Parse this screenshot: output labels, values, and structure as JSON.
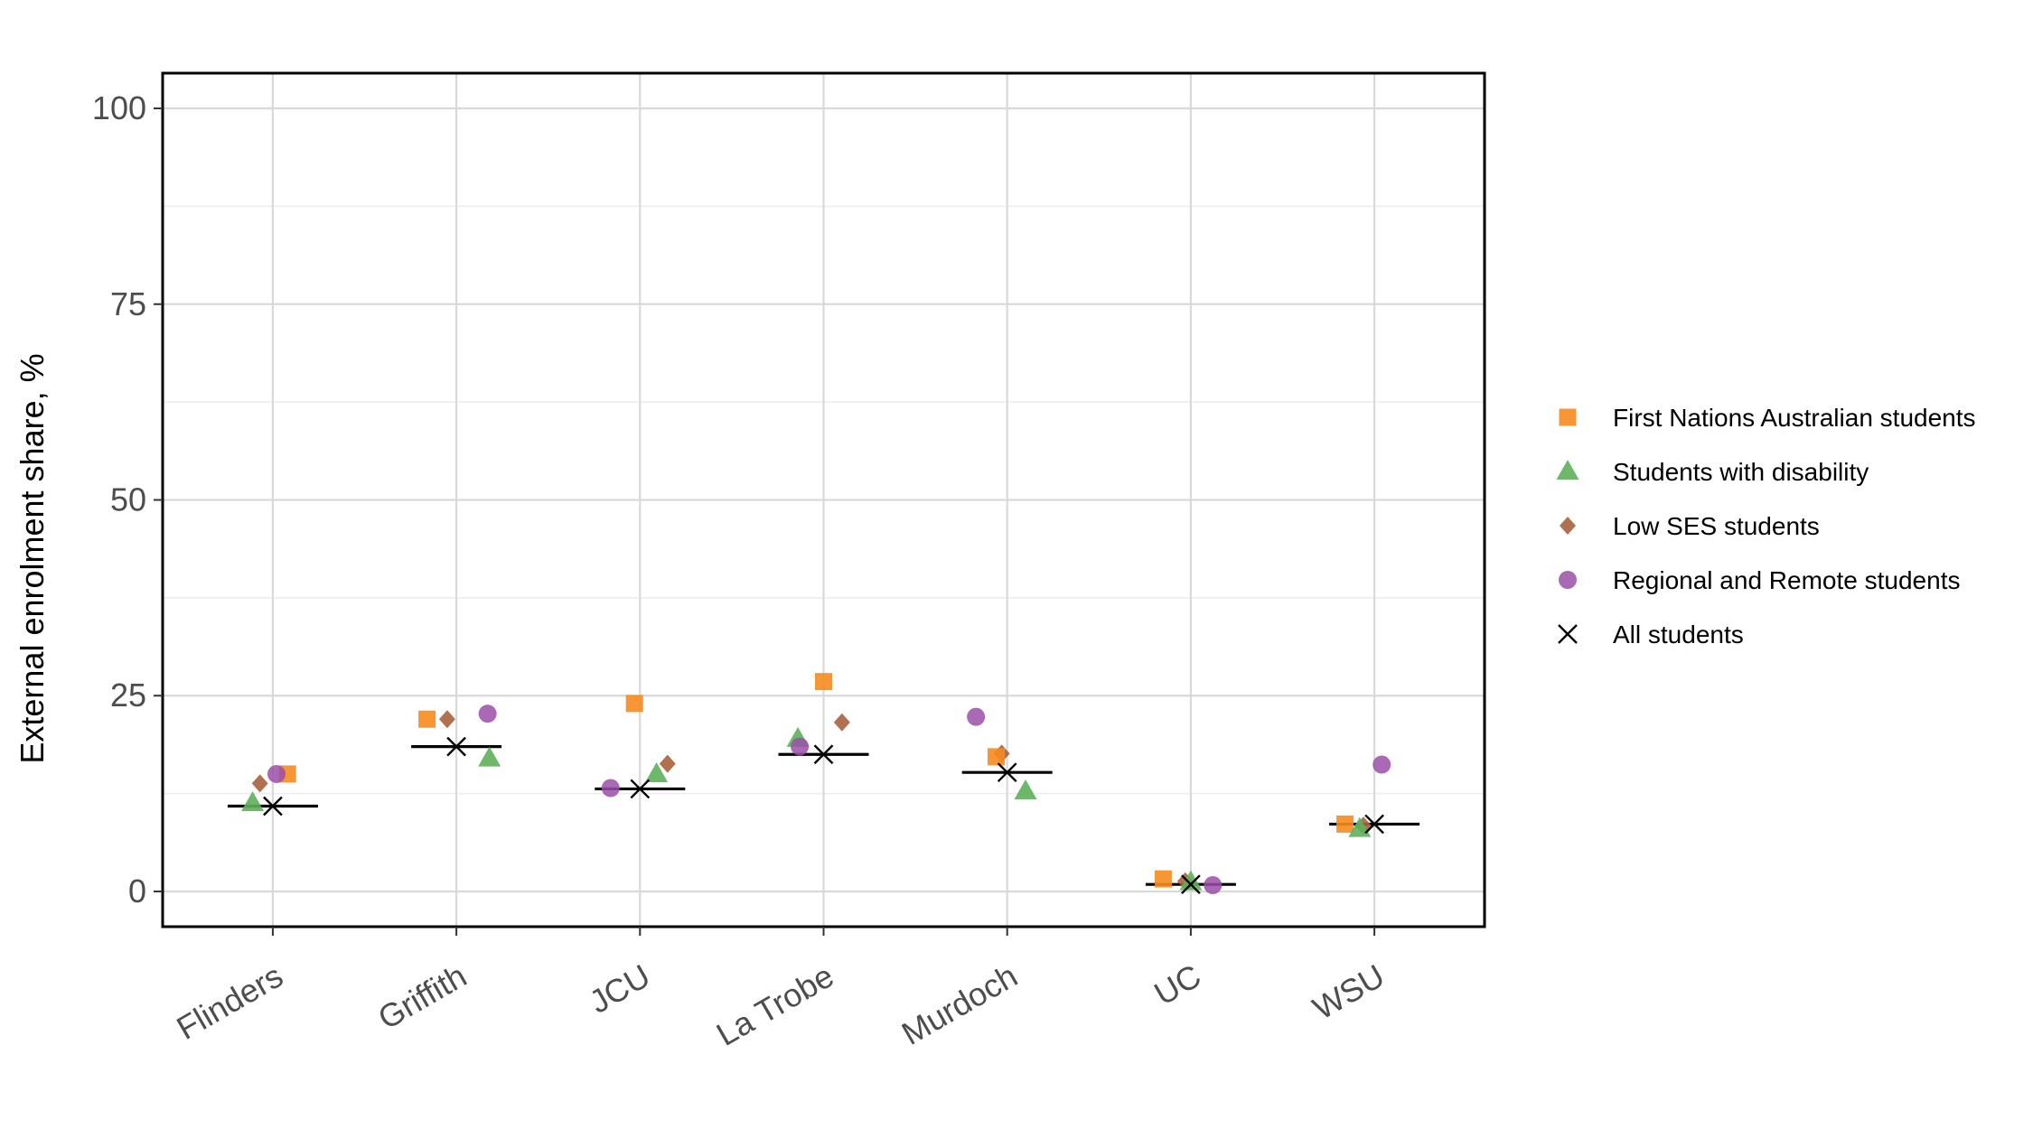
{
  "chart_data": {
    "type": "scatter",
    "title": "",
    "xlabel": "",
    "ylabel": "External enrolment share, %",
    "ylim": [
      -4.5,
      104.5
    ],
    "yticks": [
      0,
      25,
      50,
      75,
      100
    ],
    "grid": true,
    "legend_position": "right",
    "categories": [
      "Flinders",
      "Griffith",
      "JCU",
      "La Trobe",
      "Murdoch",
      "UC",
      "WSU"
    ],
    "series": [
      {
        "name": "First Nations Australian students",
        "marker": "square",
        "color": "#F68B1F",
        "values": [
          15,
          22,
          24,
          26.8,
          17.2,
          1.6,
          8.6
        ],
        "offsets": [
          0.08,
          -0.16,
          -0.03,
          0.0,
          -0.06,
          -0.15,
          -0.16
        ]
      },
      {
        "name": "Students with disability",
        "marker": "triangle",
        "color": "#5DB05B",
        "values": [
          11.3,
          17,
          15,
          19.5,
          12.8,
          1.2,
          8
        ],
        "offsets": [
          -0.11,
          0.18,
          0.09,
          -0.14,
          0.1,
          0.0,
          -0.08
        ]
      },
      {
        "name": "Low SES students",
        "marker": "diamond",
        "color": "#A8603C",
        "values": [
          13.8,
          22,
          16.3,
          21.6,
          17.6,
          1.3,
          8.4
        ],
        "offsets": [
          -0.07,
          -0.05,
          0.15,
          0.1,
          -0.03,
          -0.03,
          -0.06
        ]
      },
      {
        "name": "Regional and Remote students",
        "marker": "circle",
        "color": "#9B4FA8",
        "values": [
          15,
          22.7,
          13.2,
          18.5,
          22.3,
          0.8,
          16.2
        ],
        "offsets": [
          0.02,
          0.17,
          -0.16,
          -0.13,
          -0.17,
          0.12,
          0.04
        ]
      },
      {
        "name": "All students",
        "marker": "cross",
        "color": "#000000",
        "values": [
          10.9,
          18.5,
          13.1,
          17.5,
          15.2,
          0.9,
          8.6
        ],
        "offsets": [
          0.0,
          0.0,
          0.0,
          0.0,
          0.0,
          0.0,
          0.0
        ]
      }
    ]
  }
}
